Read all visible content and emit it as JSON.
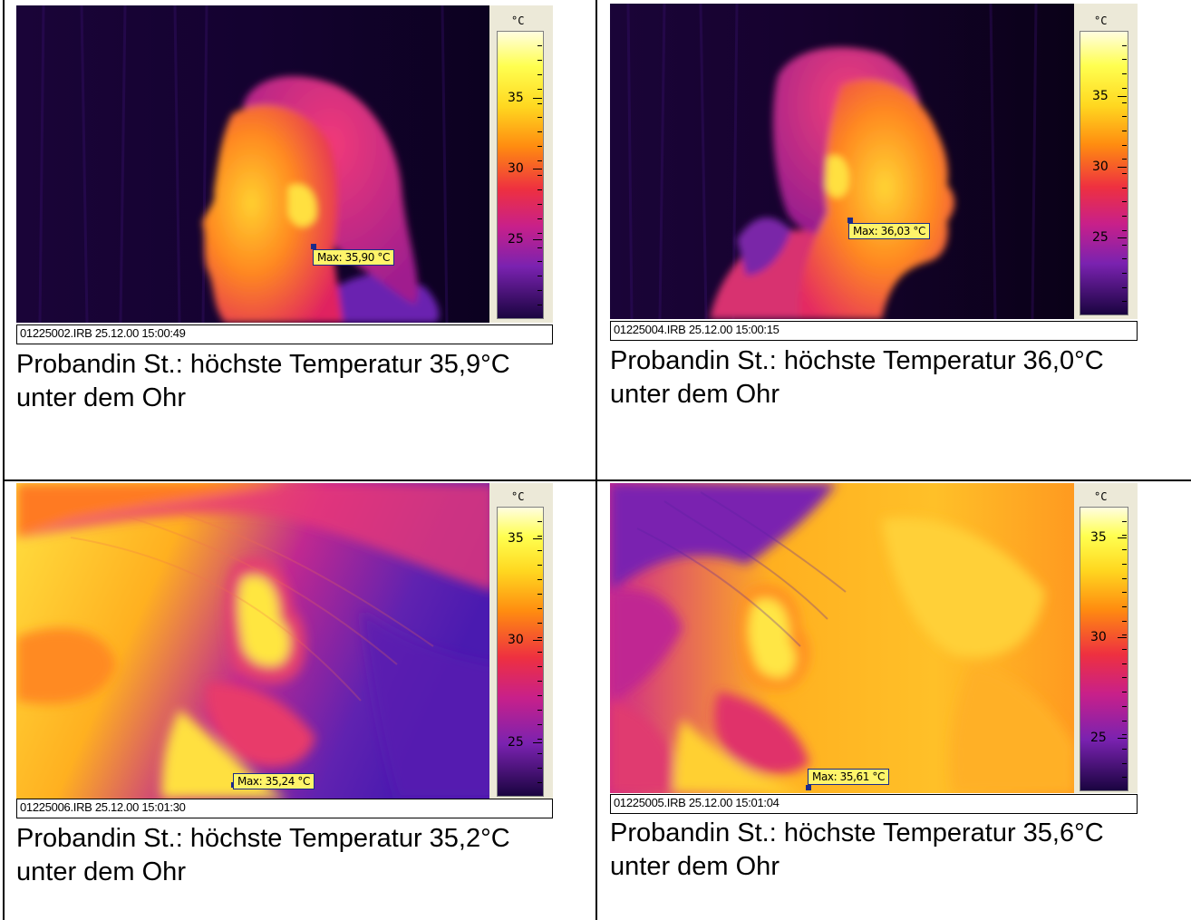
{
  "cells": [
    {
      "info": "01225002.IRB  25.12.00  15:00:49",
      "max_label": "Max: 35,90 °C",
      "caption_line1": "Probandin St.: höchste Temperatur 35,9°C",
      "caption_line2": "unter dem Ohr",
      "scale_unit": "°C",
      "scale_ticks": [
        "35",
        "30",
        "25"
      ]
    },
    {
      "info": "01225004.IRB  25.12.00  15:00:15",
      "max_label": "Max: 36,03 °C",
      "caption_line1": "Probandin St.: höchste Temperatur 36,0°C",
      "caption_line2": "unter dem Ohr",
      "scale_unit": "°C",
      "scale_ticks": [
        "35",
        "30",
        "25"
      ]
    },
    {
      "info": "01225006.IRB  25.12.00  15:01:30",
      "max_label": "Max: 35,24 °C",
      "caption_line1": "Probandin St.: höchste Temperatur 35,2°C",
      "caption_line2": "unter dem Ohr",
      "scale_unit": "°C",
      "scale_ticks": [
        "35",
        "30",
        "25"
      ]
    },
    {
      "info": "01225005.IRB  25.12.00  15:01:04",
      "max_label": "Max: 35,61 °C",
      "caption_line1": "Probandin St.: höchste Temperatur 35,6°C",
      "caption_line2": "unter dem Ohr",
      "scale_unit": "°C",
      "scale_ticks": [
        "35",
        "30",
        "25"
      ]
    }
  ],
  "palette": {
    "ironbow_top": "#ffffe0",
    "ironbow_yellow": "#ffee30",
    "ironbow_orange": "#ff8a10",
    "ironbow_red": "#ee2050",
    "ironbow_magenta": "#c0209a",
    "ironbow_purple": "#6a20b0",
    "ironbow_dark": "#100030"
  }
}
